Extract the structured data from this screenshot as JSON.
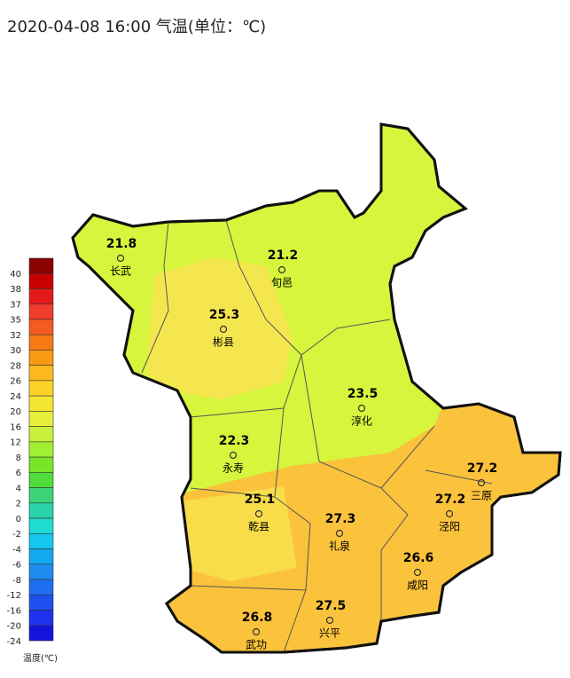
{
  "header": {
    "title": "2020-04-08 16:00 气温(单位：℃)"
  },
  "legend": {
    "title": "温度(℃)",
    "ticks": [
      "40",
      "38",
      "37",
      "35",
      "32",
      "30",
      "28",
      "26",
      "24",
      "20",
      "16",
      "12",
      "8",
      "6",
      "4",
      "2",
      "0",
      "-2",
      "-4",
      "-6",
      "-8",
      "-12",
      "-16",
      "-20",
      "-24"
    ],
    "colors": [
      "#8b0000",
      "#c80000",
      "#e41a1a",
      "#f03c2a",
      "#f55a1e",
      "#f87a14",
      "#fa9a14",
      "#fbb91e",
      "#fbd228",
      "#f5e632",
      "#e6f03c",
      "#c8f03c",
      "#a0f032",
      "#78e628",
      "#50dc3c",
      "#3cd278",
      "#28d2aa",
      "#1edcd2",
      "#14c8f0",
      "#14aaf0",
      "#1e8cf0",
      "#1e6ef0",
      "#1e50f0",
      "#1e32f0",
      "#1414dc"
    ]
  },
  "stations": [
    {
      "name": "长武",
      "value": "21.8"
    },
    {
      "name": "旬邑",
      "value": "21.2"
    },
    {
      "name": "彬县",
      "value": "25.3"
    },
    {
      "name": "淳化",
      "value": "23.5"
    },
    {
      "name": "永寿",
      "value": "22.3"
    },
    {
      "name": "三原",
      "value": "27.2"
    },
    {
      "name": "泾阳",
      "value": "27.2"
    },
    {
      "name": "乾县",
      "value": "25.1"
    },
    {
      "name": "礼泉",
      "value": "27.3"
    },
    {
      "name": "咸阳",
      "value": "26.6"
    },
    {
      "name": "兴平",
      "value": "27.5"
    },
    {
      "name": "武功",
      "value": "26.8"
    }
  ]
}
